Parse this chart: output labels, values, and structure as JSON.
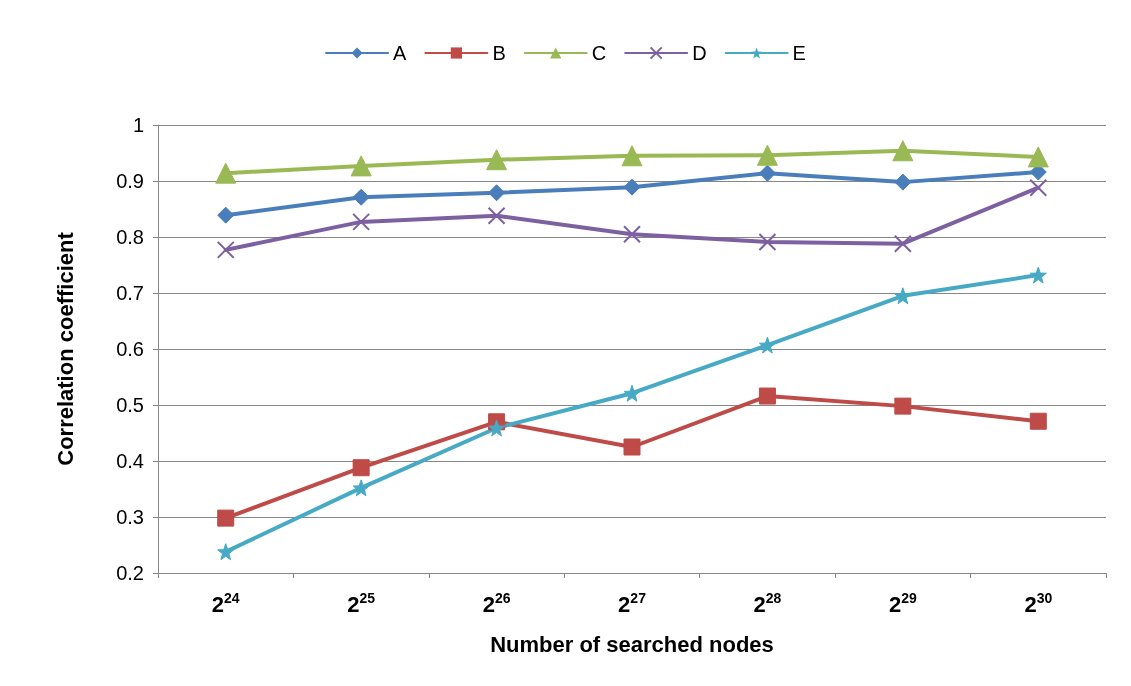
{
  "chart_data": {
    "type": "line",
    "xlabel": "Number of searched nodes",
    "ylabel": "Correlation coefficient",
    "categories": [
      "2$^{24}$",
      "2$^{25}$",
      "2$^{26}$",
      "2$^{27}$",
      "2$^{28}$",
      "2$^{29}$",
      "2$^{30}$"
    ],
    "series": [
      {
        "name": "A",
        "color": "#4a7ebb",
        "marker": "diamond",
        "values": [
          0.839,
          0.871,
          0.879,
          0.889,
          0.914,
          0.898,
          0.916
        ]
      },
      {
        "name": "B",
        "color": "#be4b48",
        "marker": "square",
        "values": [
          0.298,
          0.388,
          0.47,
          0.425,
          0.516,
          0.498,
          0.471
        ]
      },
      {
        "name": "C",
        "color": "#98b954",
        "marker": "triangle",
        "values": [
          0.914,
          0.927,
          0.938,
          0.945,
          0.946,
          0.954,
          0.943
        ]
      },
      {
        "name": "D",
        "color": "#7d60a0",
        "marker": "cross",
        "values": [
          0.777,
          0.827,
          0.838,
          0.805,
          0.791,
          0.788,
          0.888
        ]
      },
      {
        "name": "E",
        "color": "#46aac5",
        "marker": "star",
        "values": [
          0.238,
          0.352,
          0.459,
          0.521,
          0.607,
          0.695,
          0.732
        ]
      }
    ],
    "ylim": [
      0.2,
      1
    ],
    "yticks": [
      0.2,
      0.3,
      0.4,
      0.5,
      0.6,
      0.7,
      0.8,
      0.9,
      1
    ],
    "grid": "y",
    "legend": "top",
    "line_style": "solid"
  }
}
